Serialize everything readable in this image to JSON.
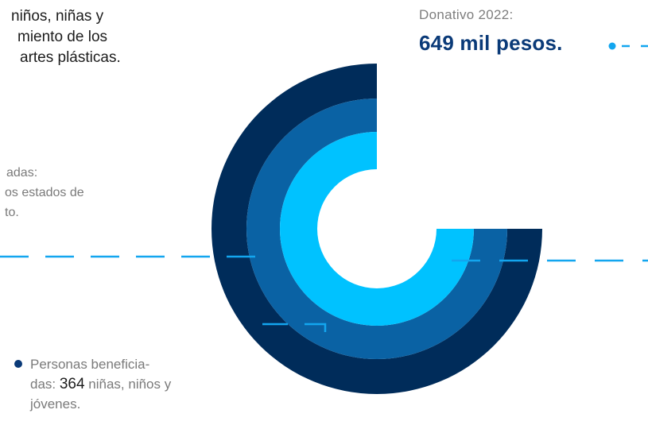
{
  "intro": {
    "line1": "niños, niñas y",
    "line2": "miento de los",
    "line3": "artes plásticas."
  },
  "states": {
    "line1": "adas:",
    "line2": "os estados de",
    "line3": "to."
  },
  "donation": {
    "label": "Donativo 2022:",
    "value": "649 mil pesos."
  },
  "beneficiaries": {
    "prefix": "Personas beneficia-",
    "line2_start": "das: ",
    "count": "364",
    "line2_end": " niñas, niños y",
    "line3": "jóvenes."
  },
  "colors": {
    "outer_ring": "#002c5a",
    "middle_ring": "#0a62a4",
    "inner_ring": "#00c2ff",
    "dashed_line": "#13a6ef",
    "bullet": "#0a3a78"
  }
}
